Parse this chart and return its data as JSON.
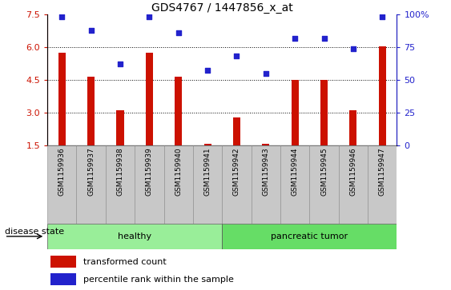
{
  "title": "GDS4767 / 1447856_x_at",
  "samples": [
    "GSM1159936",
    "GSM1159937",
    "GSM1159938",
    "GSM1159939",
    "GSM1159940",
    "GSM1159941",
    "GSM1159942",
    "GSM1159943",
    "GSM1159944",
    "GSM1159945",
    "GSM1159946",
    "GSM1159947"
  ],
  "transformed_count": [
    5.75,
    4.65,
    3.1,
    5.75,
    4.65,
    1.55,
    2.75,
    1.55,
    4.5,
    4.5,
    3.1,
    6.05
  ],
  "percentile_rank": [
    98,
    88,
    62,
    98,
    86,
    57,
    68,
    55,
    82,
    82,
    74,
    98
  ],
  "bar_color": "#cc1100",
  "dot_color": "#2222cc",
  "ylim_left": [
    1.5,
    7.5
  ],
  "yticks_left": [
    1.5,
    3.0,
    4.5,
    6.0,
    7.5
  ],
  "ylim_right": [
    0,
    100
  ],
  "yticks_right": [
    0,
    25,
    50,
    75,
    100
  ],
  "groups": [
    {
      "label": "healthy",
      "start": 0,
      "end": 6,
      "color": "#99ee99"
    },
    {
      "label": "pancreatic tumor",
      "start": 6,
      "end": 12,
      "color": "#66dd66"
    }
  ],
  "disease_state_label": "disease state",
  "legend_bar_label": "transformed count",
  "legend_dot_label": "percentile rank within the sample",
  "grid_color": "black",
  "tick_bg_color": "#c8c8c8",
  "bar_width": 0.25
}
